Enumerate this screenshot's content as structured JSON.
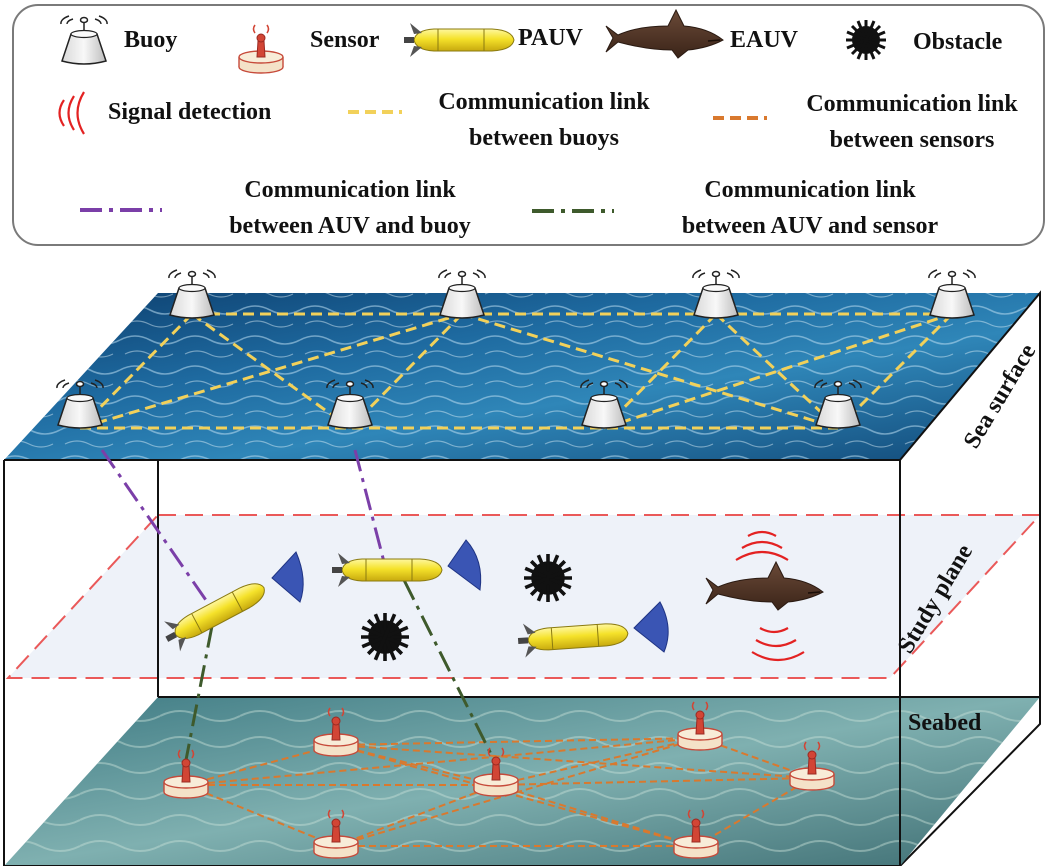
{
  "legend": {
    "buoy": "Buoy",
    "sensor": "Sensor",
    "pauv": "PAUV",
    "eauv": "EAUV",
    "obstacle": "Obstacle",
    "signal": "Signal detection",
    "link_buoys_1": "Communication link",
    "link_buoys_2": "between buoys",
    "link_sensors_1": "Communication link",
    "link_sensors_2": "between sensors",
    "link_auv_buoy_1": "Communication link",
    "link_auv_buoy_2": "between AUV and buoy",
    "link_auv_sensor_1": "Communication link",
    "link_auv_sensor_2": "between AUV and sensor"
  },
  "scene": {
    "sea_surface": "Sea surface",
    "study_plane": "Study plane",
    "seabed": "Seabed"
  },
  "colors": {
    "buoy_link": "#f2d15a",
    "sensor_link": "#d9792e",
    "auv_buoy_link": "#7b3fa8",
    "auv_sensor_link": "#3e5a2c",
    "signal": "#e32222",
    "study_plane_border": "#e32222",
    "auv_yellow": "#f5e22a",
    "sonar_blue": "#3a55b4"
  }
}
